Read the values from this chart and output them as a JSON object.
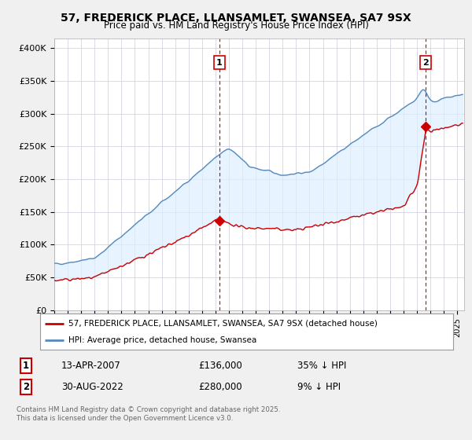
{
  "title": "57, FREDERICK PLACE, LLANSAMLET, SWANSEA, SA7 9SX",
  "subtitle": "Price paid vs. HM Land Registry's House Price Index (HPI)",
  "ylabel_ticks": [
    "£0",
    "£50K",
    "£100K",
    "£150K",
    "£200K",
    "£250K",
    "£300K",
    "£350K",
    "£400K"
  ],
  "ytick_values": [
    0,
    50000,
    100000,
    150000,
    200000,
    250000,
    300000,
    350000,
    400000
  ],
  "ylim": [
    0,
    415000
  ],
  "xlim_start": 1995.0,
  "xlim_end": 2025.5,
  "point1_x": 2007.28,
  "point1_y": 136000,
  "point2_x": 2022.66,
  "point2_y": 280000,
  "vline1_x": 2007.28,
  "vline2_x": 2022.66,
  "legend_line1": "57, FREDERICK PLACE, LLANSAMLET, SWANSEA, SA7 9SX (detached house)",
  "legend_line2": "HPI: Average price, detached house, Swansea",
  "annotation1_date": "13-APR-2007",
  "annotation1_price": "£136,000",
  "annotation1_hpi": "35% ↓ HPI",
  "annotation2_date": "30-AUG-2022",
  "annotation2_price": "£280,000",
  "annotation2_hpi": "9% ↓ HPI",
  "footer": "Contains HM Land Registry data © Crown copyright and database right 2025.\nThis data is licensed under the Open Government Licence v3.0.",
  "red_color": "#cc0000",
  "blue_color": "#5588bb",
  "fill_color": "#ddeeff",
  "background_color": "#f0f0f0",
  "plot_bg_color": "#ffffff",
  "grid_color": "#ccccdd"
}
